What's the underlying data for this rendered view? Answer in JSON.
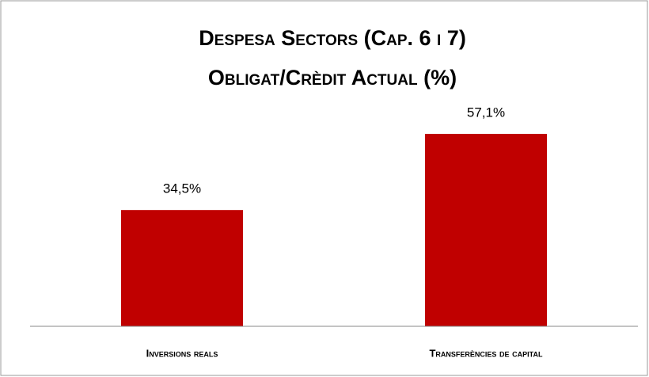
{
  "chart_data": {
    "type": "bar",
    "title": "Despesa Sectors (Cap. 6 i 7)",
    "subtitle": "Obligat/Crèdit Actual (%)",
    "categories": [
      "Inversions reals",
      "Transferències de capital"
    ],
    "values": [
      34.5,
      57.1
    ],
    "value_labels": [
      "34,5%",
      "57,1%"
    ],
    "color": "#c00000"
  }
}
